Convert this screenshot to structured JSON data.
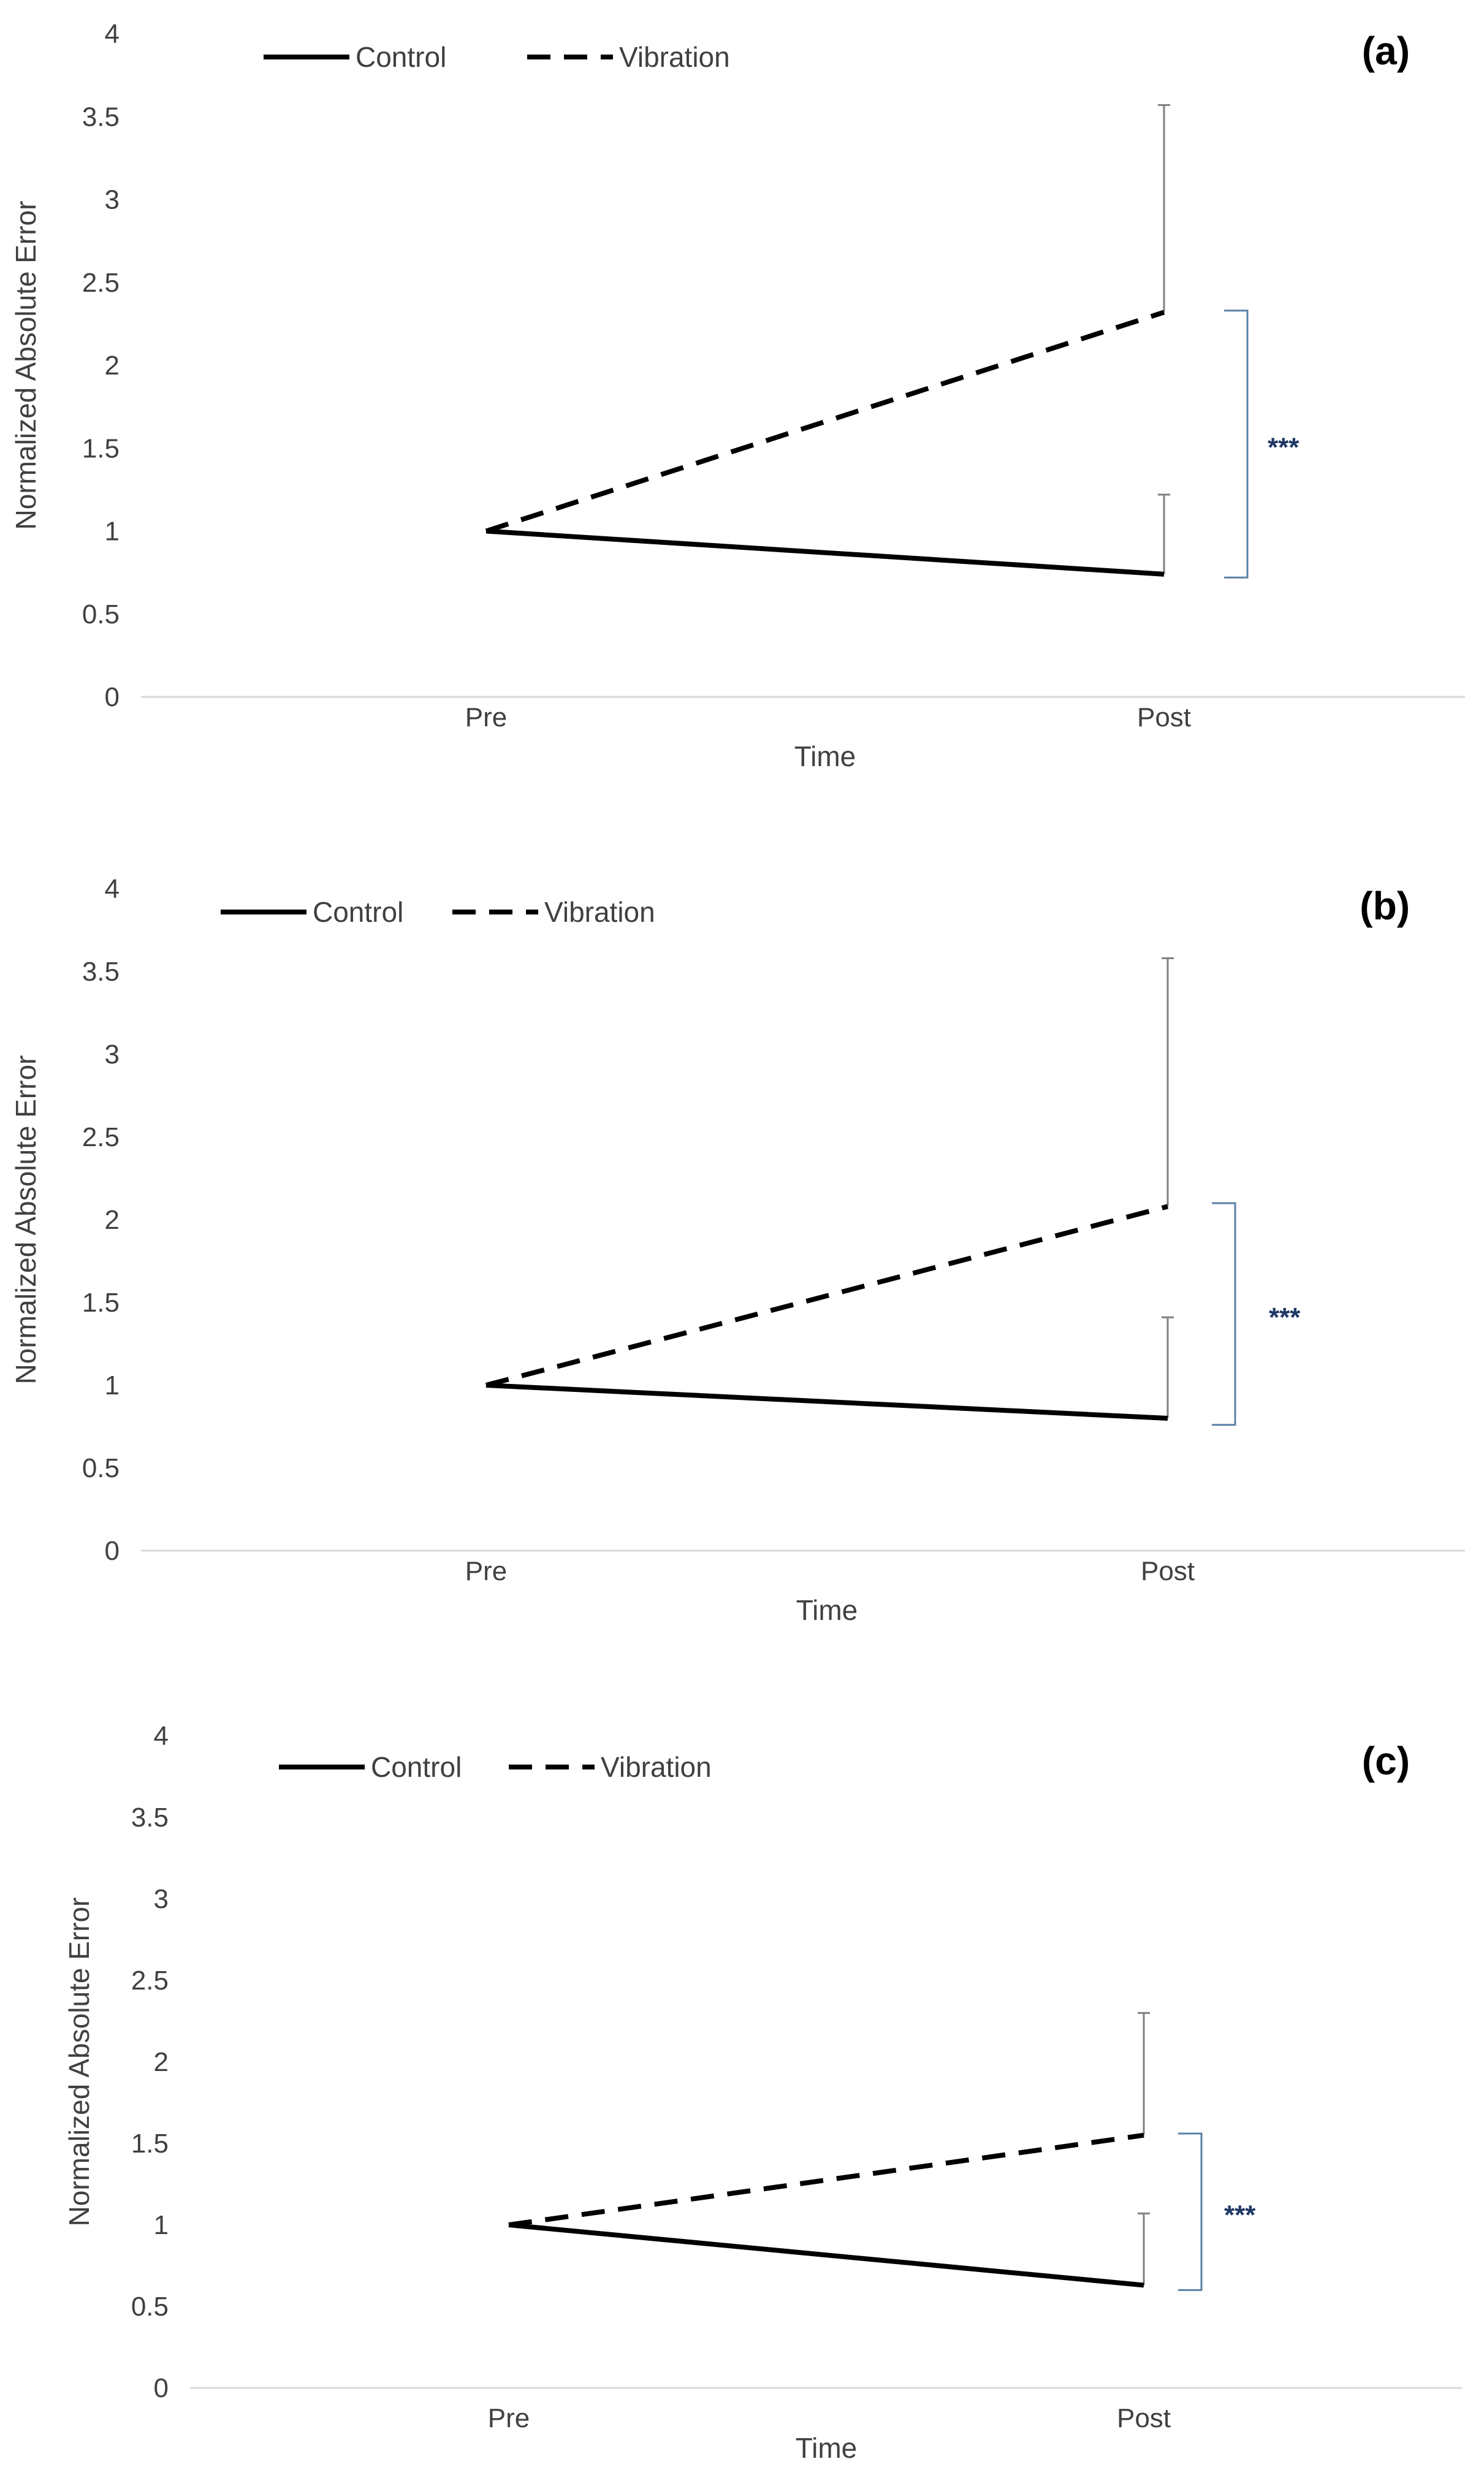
{
  "figure": {
    "colors": {
      "series_line": "#000000",
      "axis": "#d9d9d9",
      "text": "#404040",
      "error_bar": "#7f7f7f",
      "bracket": "#5b7fa6",
      "significance": "#1f3864"
    }
  },
  "chart_data": [
    {
      "type": "line",
      "panel_label": "(a)",
      "categories": [
        "Pre",
        "Post"
      ],
      "xlabel": "Time",
      "ylabel": "Normalized Absolute Error",
      "ylim": [
        0,
        4
      ],
      "yticks": [
        "0",
        "0.5",
        "1",
        "1.5",
        "2",
        "2.5",
        "3",
        "3.5",
        "4"
      ],
      "grid": false,
      "legend_position": "top-left",
      "series": [
        {
          "name": "Control",
          "style": "solid",
          "values": [
            1,
            0.74
          ],
          "error_upper": [
            null,
            1.22
          ]
        },
        {
          "name": "Vibration",
          "style": "dashed",
          "values": [
            1,
            2.32
          ],
          "error_upper": [
            null,
            3.57
          ]
        }
      ],
      "significance": "***",
      "significance_range": [
        0.72,
        2.33
      ]
    },
    {
      "type": "line",
      "panel_label": "(b)",
      "categories": [
        "Pre",
        "Post"
      ],
      "xlabel": "Time",
      "ylabel": "Normalized Absolute Error",
      "ylim": [
        0,
        4
      ],
      "yticks": [
        "0",
        "0.5",
        "1",
        "1.5",
        "2",
        "2.5",
        "3",
        "3.5",
        "4"
      ],
      "grid": false,
      "legend_position": "top-left",
      "series": [
        {
          "name": "Control",
          "style": "solid",
          "values": [
            1,
            0.8
          ],
          "error_upper": [
            null,
            1.41
          ]
        },
        {
          "name": "Vibration",
          "style": "dashed",
          "values": [
            1,
            2.08
          ],
          "error_upper": [
            null,
            3.58
          ]
        }
      ],
      "significance": "***",
      "significance_range": [
        0.76,
        2.1
      ]
    },
    {
      "type": "line",
      "panel_label": "(c)",
      "categories": [
        "Pre",
        "Post"
      ],
      "xlabel": "Time",
      "ylabel": "Normalized Absolute Error",
      "ylim": [
        0,
        4
      ],
      "yticks": [
        "0",
        "0.5",
        "1",
        "1.5",
        "2",
        "2.5",
        "3",
        "3.5",
        "4"
      ],
      "grid": false,
      "legend_position": "top-left",
      "series": [
        {
          "name": "Control",
          "style": "solid",
          "values": [
            1,
            0.63
          ],
          "error_upper": [
            null,
            1.07
          ]
        },
        {
          "name": "Vibration",
          "style": "dashed",
          "values": [
            1,
            1.55
          ],
          "error_upper": [
            null,
            2.3
          ]
        }
      ],
      "significance": "***",
      "significance_range": [
        0.6,
        1.56
      ]
    }
  ]
}
